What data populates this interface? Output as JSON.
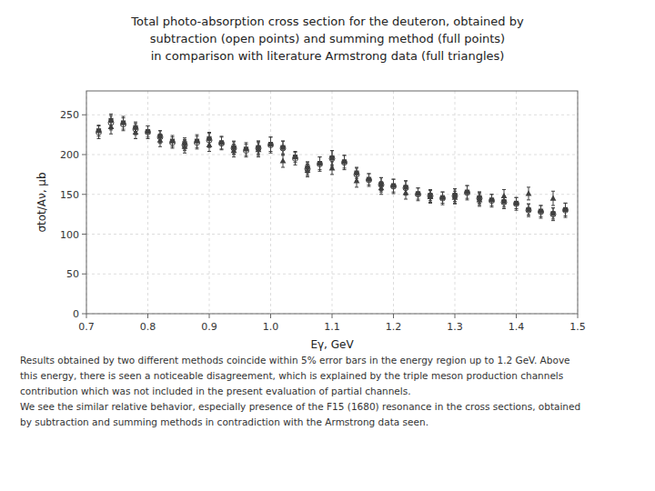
{
  "chart_data": {
    "type": "scatter",
    "title": "Total photo-absorption cross section for the deuteron, obtained by\nsubtraction (open points) and summing method (full points)\nin comparison with literature Armstrong data (full triangles)",
    "annotations": [
      "Results obtained by two different methods coincide within 5% error bars in the energy region up to 1.2 GeV. Above\nthis energy, there is seen a noticeable disagreement, which is explained by the triple meson production channels\ncontribution which was not included in the present evaluation of partial channels.\nWe see the similar relative behavior, especially presence of the F15 (1680) resonance in the cross sections, obtained\nby subtraction and summing methods in contradiction with the Armstrong data seen."
    ],
    "x_label": "Eγ, GeV",
    "y_label": "σtot/Aν, μb",
    "xlim": [
      0.7,
      1.5
    ],
    "ylim": [
      0,
      280
    ],
    "xticks": [
      0.7,
      0.8,
      0.9,
      {
        "value": 1.0,
        "label": "1.0"
      },
      1.1,
      1.2,
      1.3,
      1.4,
      1.5
    ],
    "yticks": [
      0,
      50,
      100,
      150,
      200,
      250
    ],
    "grid": true,
    "series": [
      {
        "marker": "open-circle",
        "color": "#404040",
        "x": [
          0.72,
          0.74,
          0.76,
          0.78,
          0.8,
          0.82,
          0.84,
          0.86,
          0.88,
          0.9,
          0.92,
          0.94,
          0.96,
          0.98,
          1.0,
          1.02,
          1.04,
          1.06,
          1.08,
          1.1,
          1.12,
          1.14,
          1.16,
          1.18,
          1.2,
          1.22,
          1.24,
          1.26,
          1.28,
          1.3,
          1.32,
          1.34,
          1.36,
          1.38,
          1.4,
          1.42,
          1.44,
          1.46,
          1.48
        ],
        "values": [
          228,
          240,
          238,
          232,
          228,
          222,
          215,
          212,
          215,
          218,
          214,
          208,
          205,
          208,
          212,
          208,
          195,
          182,
          188,
          195,
          190,
          175,
          168,
          162,
          160,
          158,
          150,
          148,
          145,
          148,
          152,
          145,
          142,
          140,
          138,
          130,
          128,
          125,
          130
        ],
        "errors": [
          8,
          9,
          8,
          7,
          8,
          8,
          7,
          7,
          8,
          9,
          8,
          8,
          8,
          9,
          10,
          9,
          8,
          8,
          9,
          10,
          9,
          8,
          8,
          9,
          9,
          9,
          8,
          8,
          8,
          9,
          9,
          8,
          8,
          8,
          8,
          8,
          8,
          8,
          9
        ]
      },
      {
        "marker": "square",
        "color": "#404040",
        "x": [
          0.72,
          0.74,
          0.76,
          0.78,
          0.8,
          0.82,
          0.84,
          0.86,
          0.88,
          0.9,
          0.92,
          0.94,
          0.96,
          0.98,
          1.0,
          1.02,
          1.04,
          1.06,
          1.08,
          1.1,
          1.12,
          1.14,
          1.16,
          1.18,
          1.2,
          1.22,
          1.24,
          1.26,
          1.28,
          1.3,
          1.32,
          1.34,
          1.36,
          1.38,
          1.4,
          1.42,
          1.44,
          1.46,
          1.48
        ],
        "values": [
          230,
          243,
          240,
          234,
          229,
          223,
          217,
          214,
          217,
          220,
          215,
          209,
          207,
          209,
          213,
          209,
          197,
          184,
          189,
          196,
          191,
          177,
          169,
          163,
          161,
          159,
          151,
          149,
          146,
          149,
          153,
          146,
          143,
          141,
          139,
          131,
          129,
          126,
          131
        ],
        "errors": [
          7,
          8,
          8,
          7,
          7,
          7,
          7,
          7,
          8,
          8,
          8,
          8,
          8,
          8,
          9,
          8,
          7,
          7,
          8,
          9,
          8,
          7,
          7,
          8,
          8,
          8,
          7,
          7,
          7,
          8,
          8,
          7,
          7,
          7,
          7,
          7,
          7,
          7,
          8
        ]
      },
      {
        "marker": "triangle",
        "color": "#404040",
        "x": [
          0.74,
          0.78,
          0.82,
          0.86,
          0.9,
          0.94,
          0.98,
          1.02,
          1.06,
          1.1,
          1.14,
          1.18,
          1.22,
          1.26,
          1.3,
          1.34,
          1.38,
          1.42,
          1.46
        ],
        "values": [
          235,
          228,
          218,
          210,
          212,
          205,
          206,
          192,
          180,
          183,
          167,
          158,
          152,
          147,
          146,
          143,
          148,
          151,
          145
        ],
        "errors": [
          9,
          8,
          8,
          8,
          8,
          8,
          9,
          8,
          8,
          8,
          8,
          8,
          8,
          8,
          8,
          8,
          8,
          8,
          9
        ]
      }
    ]
  }
}
